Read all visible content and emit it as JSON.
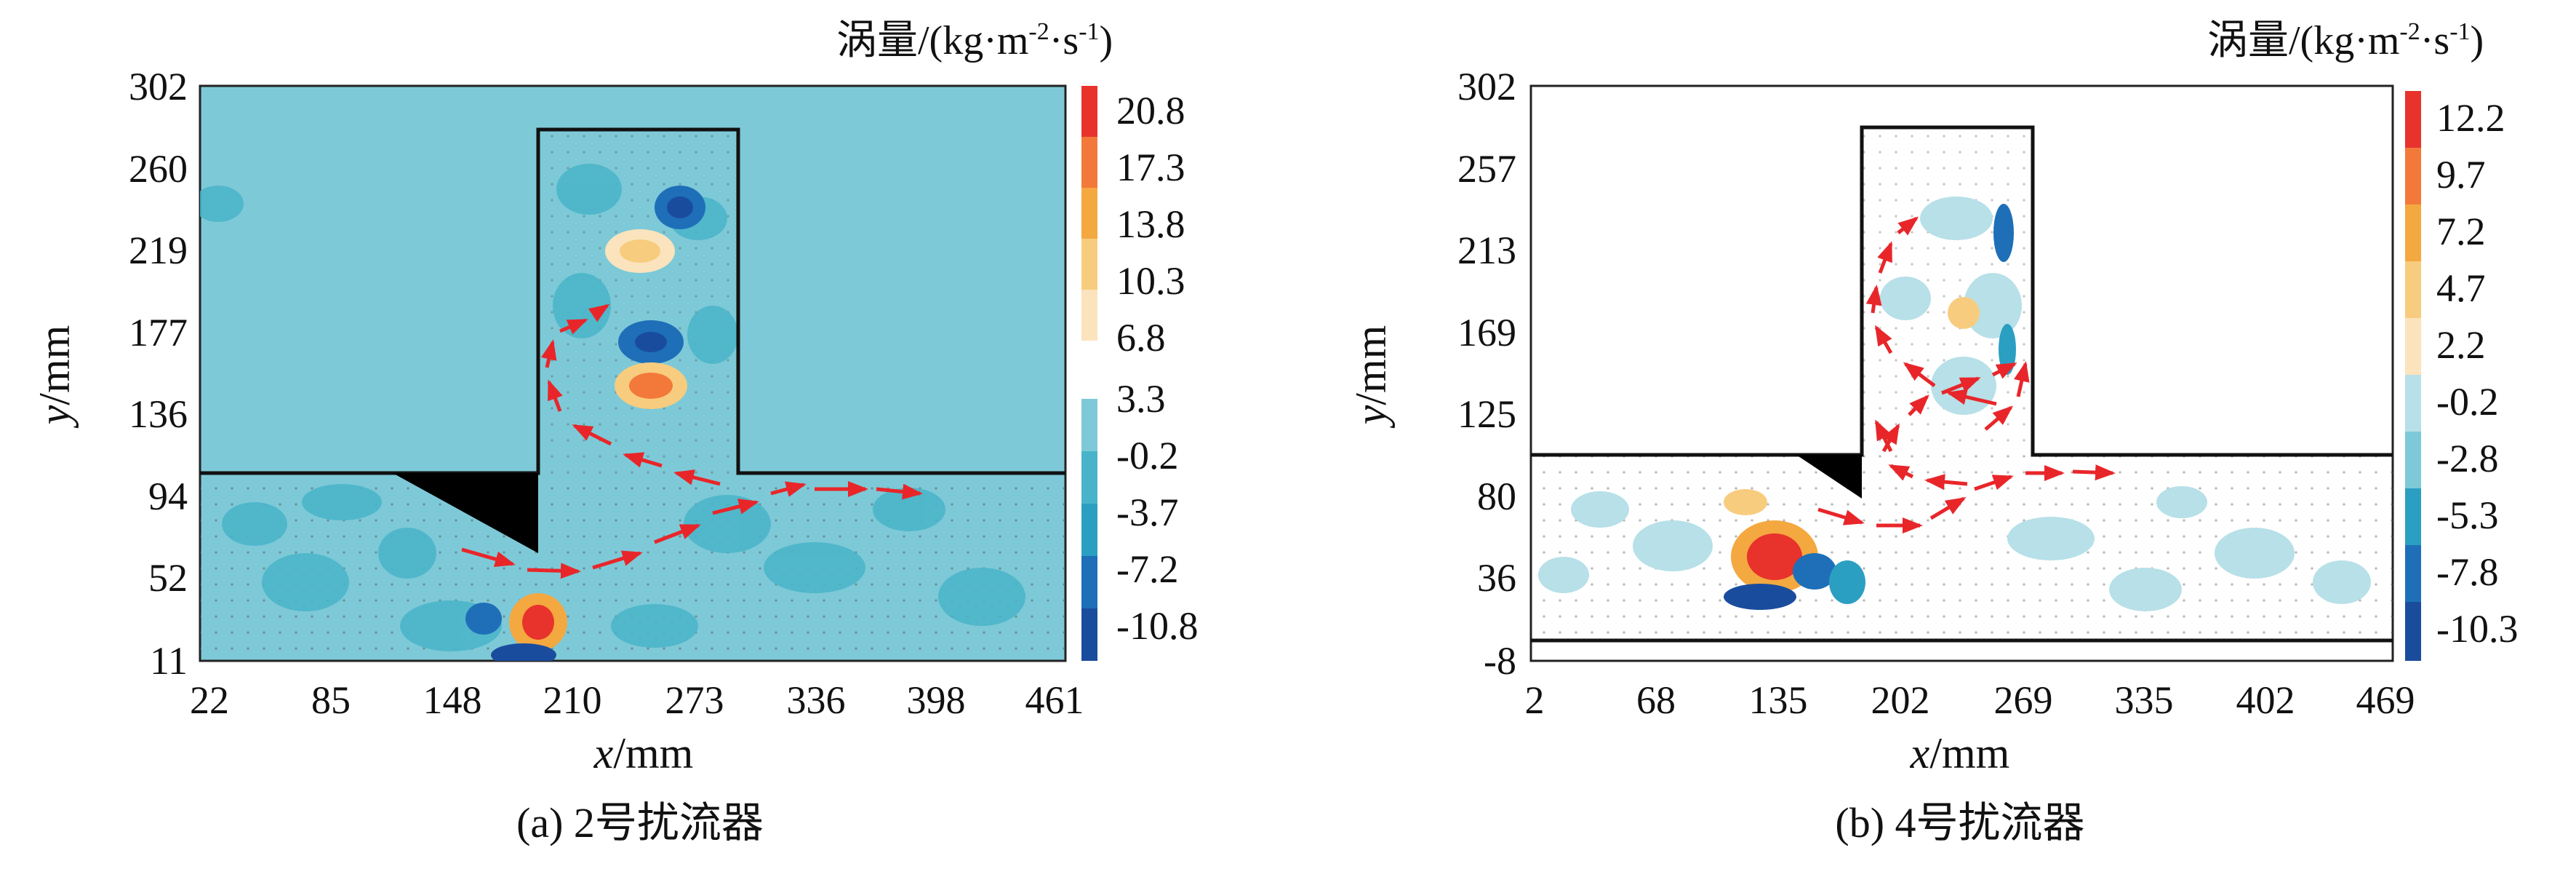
{
  "panels": [
    {
      "id": "a",
      "caption": "(a) 2号扰流器",
      "colorbar_title_main": "涡量/(kg·m",
      "colorbar_title_sup1": "-2",
      "colorbar_title_mid": "·s",
      "colorbar_title_sup2": "-1",
      "colorbar_title_end": ")",
      "xlabel_var": "x",
      "xlabel_unit": "/mm",
      "ylabel_var": "y",
      "ylabel_unit": "/mm",
      "xticks": [
        "22",
        "85",
        "148",
        "210",
        "273",
        "336",
        "398",
        "461"
      ],
      "yticks": [
        "11",
        "52",
        "94",
        "136",
        "177",
        "219",
        "260",
        "302"
      ],
      "colorbar_labels": [
        "20.8",
        "17.3",
        "13.8",
        "10.3",
        "6.8",
        "3.3",
        "-0.2",
        "-3.7",
        "-7.2",
        "-10.8"
      ],
      "colorbar_colors": [
        "#e8322c",
        "#f3793a",
        "#f4a840",
        "#f8cc7e",
        "#fbe3bd",
        "#7ec9d7",
        "#49b4c9",
        "#2b9fc2",
        "#1e6fb8",
        "#1a4c9e"
      ],
      "background_color": "#7ec9d7"
    },
    {
      "id": "b",
      "caption": "(b) 4号扰流器",
      "colorbar_title_main": "涡量/(kg·m",
      "colorbar_title_sup1": "-2",
      "colorbar_title_mid": "·s",
      "colorbar_title_sup2": "-1",
      "colorbar_title_end": ")",
      "xlabel_var": "x",
      "xlabel_unit": "/mm",
      "ylabel_var": "y",
      "ylabel_unit": "/mm",
      "xticks": [
        "2",
        "68",
        "135",
        "202",
        "269",
        "335",
        "402",
        "469"
      ],
      "yticks": [
        "-8",
        "36",
        "80",
        "125",
        "169",
        "213",
        "257",
        "302"
      ],
      "colorbar_labels": [
        "12.2",
        "9.7",
        "7.2",
        "4.7",
        "2.2",
        "-0.2",
        "-2.8",
        "-5.3",
        "-7.8",
        "-10.3"
      ],
      "colorbar_colors": [
        "#e8322c",
        "#f3793a",
        "#f4a840",
        "#f8cc7e",
        "#fbe3bd",
        "#b7e0e8",
        "#7ec9d7",
        "#2b9fc2",
        "#1e6fb8",
        "#1a4c9e"
      ],
      "background_color": "#ffffff"
    }
  ],
  "arrow_color": "#e8262a"
}
